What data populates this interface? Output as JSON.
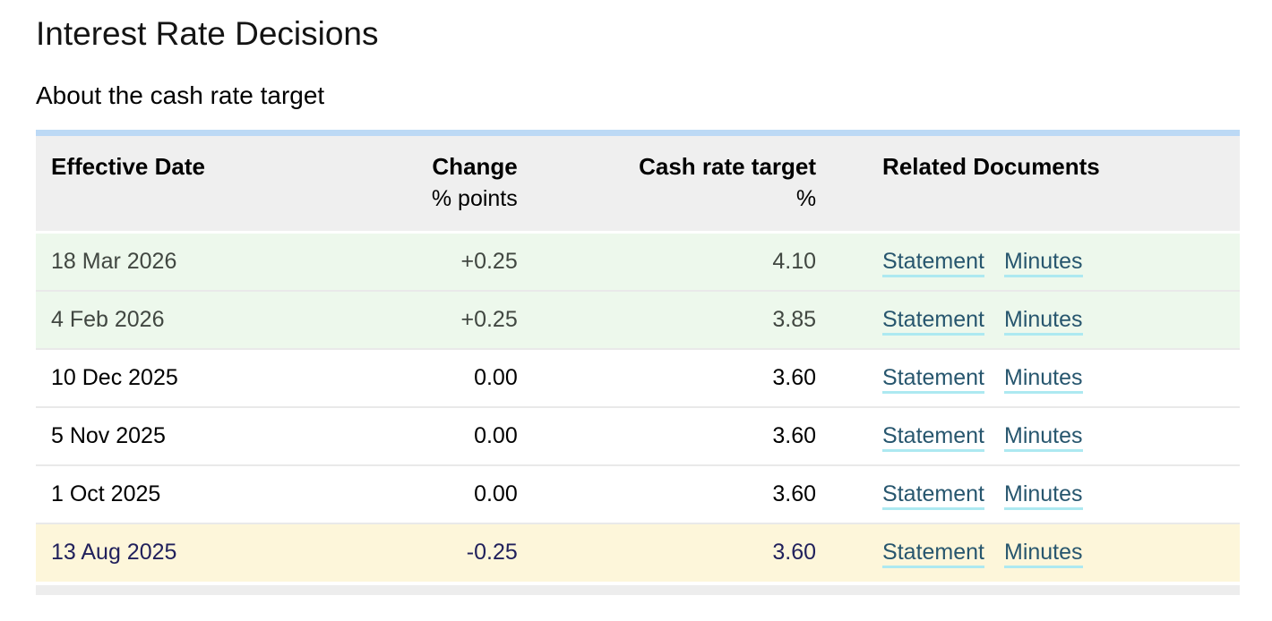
{
  "page": {
    "title": "Interest Rate Decisions",
    "about_link": "About the cash rate target"
  },
  "table": {
    "columns": [
      {
        "label": "Effective Date",
        "sublabel": ""
      },
      {
        "label": "Change",
        "sublabel": "% points"
      },
      {
        "label": "Cash rate target",
        "sublabel": "%"
      },
      {
        "label": "Related Documents",
        "sublabel": ""
      }
    ],
    "rows": [
      {
        "date": "18 Mar 2026",
        "change": "+0.25",
        "target": "4.10",
        "links": [
          "Statement",
          "Minutes"
        ],
        "highlight": "future"
      },
      {
        "date": "4 Feb 2026",
        "change": "+0.25",
        "target": "3.85",
        "links": [
          "Statement",
          "Minutes"
        ],
        "highlight": "future"
      },
      {
        "date": "10 Dec 2025",
        "change": "0.00",
        "target": "3.60",
        "links": [
          "Statement",
          "Minutes"
        ],
        "highlight": "none"
      },
      {
        "date": "5 Nov 2025",
        "change": "0.00",
        "target": "3.60",
        "links": [
          "Statement",
          "Minutes"
        ],
        "highlight": "none"
      },
      {
        "date": "1 Oct 2025",
        "change": "0.00",
        "target": "3.60",
        "links": [
          "Statement",
          "Minutes"
        ],
        "highlight": "none"
      },
      {
        "date": "13 Aug 2025",
        "change": "-0.25",
        "target": "3.60",
        "links": [
          "Statement",
          "Minutes"
        ],
        "highlight": "latest"
      }
    ]
  },
  "colors": {
    "accent_bar": "#bcd9f5",
    "header_bg": "#efefef",
    "future_row_bg": "#edf8ec",
    "latest_row_bg": "#fdf6da",
    "link": "#27566e",
    "link_underline": "#ade9f1",
    "future_text": "#414741",
    "latest_text": "#21215c"
  }
}
